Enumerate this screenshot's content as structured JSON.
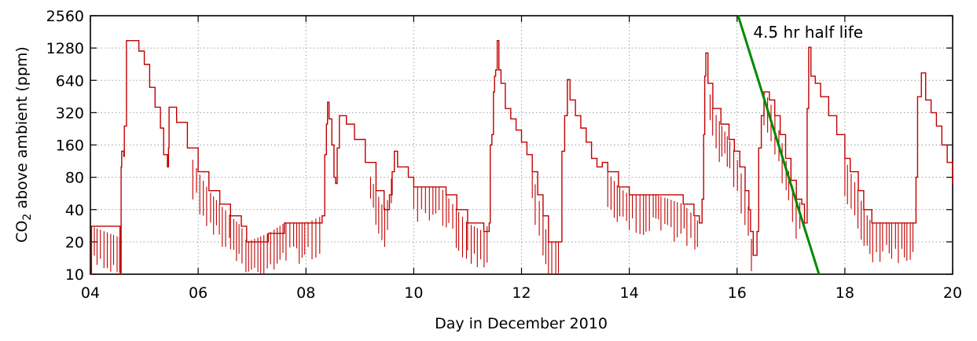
{
  "chart_data": {
    "type": "line",
    "title": "",
    "xlabel": "Day in December 2010",
    "ylabel_parts": [
      "CO",
      "2",
      " above ambient (ppm)"
    ],
    "xlim": [
      4,
      20
    ],
    "ylim": [
      10,
      2560
    ],
    "y_scale": "log2",
    "grid": true,
    "x_ticks": [
      {
        "v": 4,
        "label": "04"
      },
      {
        "v": 6,
        "label": "06"
      },
      {
        "v": 8,
        "label": "08"
      },
      {
        "v": 10,
        "label": "10"
      },
      {
        "v": 12,
        "label": "12"
      },
      {
        "v": 14,
        "label": "14"
      },
      {
        "v": 16,
        "label": "16"
      },
      {
        "v": 18,
        "label": "18"
      },
      {
        "v": 20,
        "label": "20"
      }
    ],
    "y_ticks": [
      {
        "v": 10,
        "label": "10"
      },
      {
        "v": 20,
        "label": "20"
      },
      {
        "v": 40,
        "label": "40"
      },
      {
        "v": 80,
        "label": "80"
      },
      {
        "v": 160,
        "label": "160"
      },
      {
        "v": 320,
        "label": "320"
      },
      {
        "v": 640,
        "label": "640"
      },
      {
        "v": 1280,
        "label": "1280"
      },
      {
        "v": 2560,
        "label": "2560"
      }
    ],
    "series": [
      {
        "color": "#c00000",
        "noisy_segments": [
          [
            4.0,
            4.55
          ],
          [
            5.9,
            6.6
          ],
          [
            6.6,
            8.3
          ],
          [
            9.2,
            9.6
          ],
          [
            10.0,
            11.0
          ],
          [
            11.0,
            11.4
          ],
          [
            12.2,
            12.7
          ],
          [
            13.6,
            14.0
          ],
          [
            14.0,
            15.3
          ],
          [
            15.5,
            16.3
          ],
          [
            16.5,
            17.2
          ],
          [
            18.0,
            19.3
          ]
        ],
        "points": [
          [
            4.0,
            10
          ],
          [
            4.02,
            28
          ],
          [
            4.55,
            22
          ],
          [
            4.56,
            10
          ],
          [
            4.57,
            100
          ],
          [
            4.58,
            140
          ],
          [
            4.62,
            125
          ],
          [
            4.63,
            240
          ],
          [
            4.66,
            240
          ],
          [
            4.67,
            1500
          ],
          [
            4.84,
            1500
          ],
          [
            4.9,
            1200
          ],
          [
            5.0,
            900
          ],
          [
            5.1,
            550
          ],
          [
            5.2,
            360
          ],
          [
            5.3,
            230
          ],
          [
            5.36,
            130
          ],
          [
            5.43,
            100
          ],
          [
            5.45,
            150
          ],
          [
            5.46,
            360
          ],
          [
            5.5,
            360
          ],
          [
            5.6,
            260
          ],
          [
            5.8,
            150
          ],
          [
            6.0,
            90
          ],
          [
            6.2,
            60
          ],
          [
            6.4,
            45
          ],
          [
            6.6,
            35
          ],
          [
            6.8,
            28
          ],
          [
            6.9,
            20
          ],
          [
            7.3,
            24
          ],
          [
            7.6,
            30
          ],
          [
            8.0,
            30
          ],
          [
            8.3,
            35
          ],
          [
            8.35,
            130
          ],
          [
            8.38,
            250
          ],
          [
            8.4,
            400
          ],
          [
            8.43,
            280
          ],
          [
            8.48,
            160
          ],
          [
            8.52,
            80
          ],
          [
            8.55,
            70
          ],
          [
            8.58,
            150
          ],
          [
            8.62,
            300
          ],
          [
            8.75,
            250
          ],
          [
            8.9,
            180
          ],
          [
            9.1,
            110
          ],
          [
            9.3,
            60
          ],
          [
            9.45,
            40
          ],
          [
            9.55,
            55
          ],
          [
            9.6,
            90
          ],
          [
            9.64,
            140
          ],
          [
            9.7,
            100
          ],
          [
            9.9,
            80
          ],
          [
            10.0,
            65
          ],
          [
            10.5,
            65
          ],
          [
            10.6,
            55
          ],
          [
            10.8,
            40
          ],
          [
            11.0,
            30
          ],
          [
            11.3,
            25
          ],
          [
            11.4,
            30
          ],
          [
            11.42,
            160
          ],
          [
            11.45,
            200
          ],
          [
            11.48,
            500
          ],
          [
            11.5,
            700
          ],
          [
            11.52,
            800
          ],
          [
            11.55,
            1500
          ],
          [
            11.58,
            800
          ],
          [
            11.62,
            600
          ],
          [
            11.7,
            350
          ],
          [
            11.8,
            280
          ],
          [
            11.9,
            220
          ],
          [
            12.0,
            170
          ],
          [
            12.1,
            130
          ],
          [
            12.2,
            90
          ],
          [
            12.3,
            55
          ],
          [
            12.4,
            35
          ],
          [
            12.5,
            20
          ],
          [
            12.7,
            20
          ],
          [
            12.75,
            140
          ],
          [
            12.8,
            300
          ],
          [
            12.85,
            650
          ],
          [
            12.9,
            420
          ],
          [
            13.0,
            300
          ],
          [
            13.1,
            230
          ],
          [
            13.2,
            170
          ],
          [
            13.3,
            120
          ],
          [
            13.4,
            100
          ],
          [
            13.5,
            110
          ],
          [
            13.6,
            90
          ],
          [
            13.8,
            65
          ],
          [
            14.0,
            55
          ],
          [
            14.5,
            55
          ],
          [
            15.0,
            45
          ],
          [
            15.2,
            35
          ],
          [
            15.3,
            30
          ],
          [
            15.35,
            50
          ],
          [
            15.38,
            200
          ],
          [
            15.4,
            700
          ],
          [
            15.42,
            1150
          ],
          [
            15.46,
            600
          ],
          [
            15.55,
            350
          ],
          [
            15.7,
            250
          ],
          [
            15.85,
            180
          ],
          [
            15.95,
            140
          ],
          [
            16.05,
            100
          ],
          [
            16.15,
            60
          ],
          [
            16.22,
            40
          ],
          [
            16.25,
            25
          ],
          [
            16.3,
            15
          ],
          [
            16.37,
            25
          ],
          [
            16.4,
            150
          ],
          [
            16.45,
            300
          ],
          [
            16.5,
            500
          ],
          [
            16.6,
            420
          ],
          [
            16.7,
            300
          ],
          [
            16.8,
            200
          ],
          [
            16.9,
            120
          ],
          [
            17.0,
            75
          ],
          [
            17.1,
            50
          ],
          [
            17.2,
            45
          ],
          [
            17.25,
            30
          ],
          [
            17.3,
            350
          ],
          [
            17.33,
            1300
          ],
          [
            17.37,
            700
          ],
          [
            17.45,
            600
          ],
          [
            17.55,
            450
          ],
          [
            17.7,
            300
          ],
          [
            17.85,
            200
          ],
          [
            18.0,
            120
          ],
          [
            18.1,
            90
          ],
          [
            18.25,
            60
          ],
          [
            18.35,
            40
          ],
          [
            18.5,
            30
          ],
          [
            18.8,
            30
          ],
          [
            19.0,
            30
          ],
          [
            19.3,
            30
          ],
          [
            19.32,
            80
          ],
          [
            19.35,
            450
          ],
          [
            19.42,
            750
          ],
          [
            19.5,
            420
          ],
          [
            19.6,
            320
          ],
          [
            19.7,
            240
          ],
          [
            19.8,
            160
          ],
          [
            19.9,
            110
          ],
          [
            20.0,
            70
          ]
        ]
      }
    ],
    "fit_line": {
      "color": "#008a00",
      "points": [
        [
          16.02,
          2560
        ],
        [
          17.52,
          10
        ]
      ]
    },
    "annotation": {
      "text": "4.5 hr half life",
      "x": 16.3,
      "y": 1800
    }
  }
}
